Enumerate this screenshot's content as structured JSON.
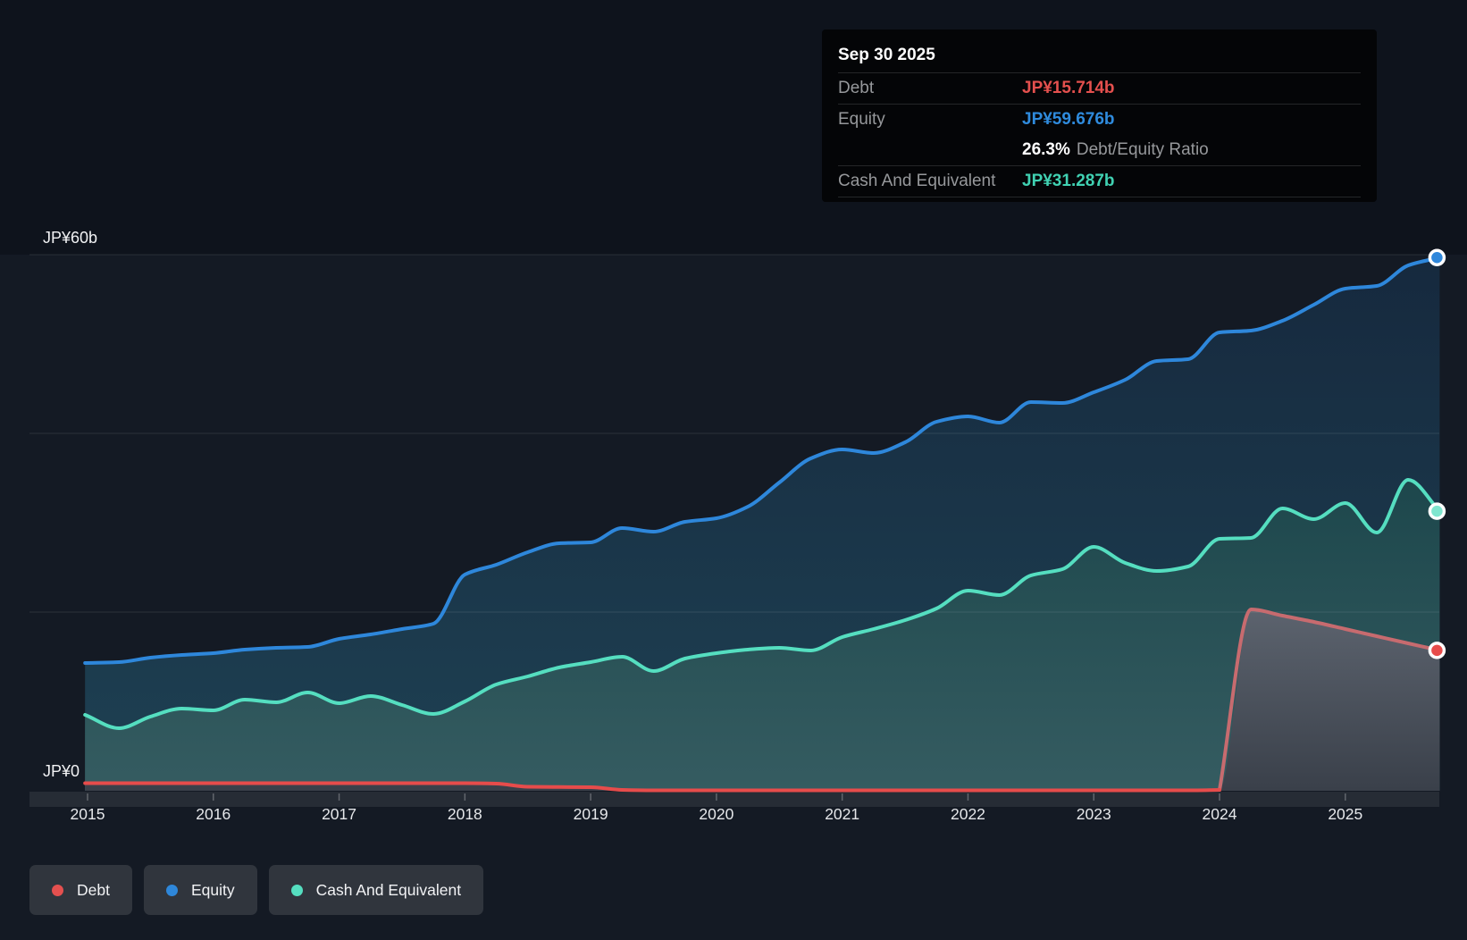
{
  "tooltip": {
    "date": "Sep 30 2025",
    "debt_label": "Debt",
    "debt_value": "JP¥15.714b",
    "equity_label": "Equity",
    "equity_value": "JP¥59.676b",
    "ratio_value": "26.3%",
    "ratio_label": "Debt/Equity Ratio",
    "cash_label": "Cash And Equivalent",
    "cash_value": "JP¥31.287b"
  },
  "y_axis": {
    "top_label": "JP¥60b",
    "zero_label": "JP¥0"
  },
  "legend": [
    {
      "label": "Debt",
      "color": "#e4504f"
    },
    {
      "label": "Equity",
      "color": "#2e87da"
    },
    {
      "label": "Cash And Equivalent",
      "color": "#55dec0"
    }
  ],
  "colors": {
    "page_bg": "#141a24",
    "top_zone_bg": "#0e131c",
    "gridline": "rgba(255,255,255,0.10)",
    "axis_strip": "#262c35",
    "tick": "rgba(255,255,255,0.28)",
    "year_text": "#e5e7ea",
    "y_label_text": "#f1f2f4"
  },
  "chart_data": {
    "type": "area",
    "title": "Debt to Equity history",
    "units": "JP¥ billions",
    "x_years": [
      "2015",
      "2016",
      "2017",
      "2018",
      "2019",
      "2020",
      "2021",
      "2022",
      "2023",
      "2024",
      "2025"
    ],
    "ylim": [
      0,
      60
    ],
    "y_gridline_values": [
      60,
      40,
      20
    ],
    "last_point_date": "Sep 30 2025",
    "series": [
      {
        "name": "Equity",
        "color": "#2e87db",
        "fill_top": "#16293e",
        "fill_bottom": "#1e4153",
        "points": [
          [
            2014.98,
            14.3
          ],
          [
            2015.25,
            14.4
          ],
          [
            2015.5,
            14.9
          ],
          [
            2015.75,
            15.2
          ],
          [
            2016,
            15.4
          ],
          [
            2016.25,
            15.8
          ],
          [
            2016.5,
            16.0
          ],
          [
            2016.75,
            16.1
          ],
          [
            2017,
            17.0
          ],
          [
            2017.25,
            17.5
          ],
          [
            2017.5,
            18.1
          ],
          [
            2017.75,
            18.7
          ],
          [
            2018,
            24.2
          ],
          [
            2018.25,
            25.3
          ],
          [
            2018.5,
            26.7
          ],
          [
            2018.75,
            27.7
          ],
          [
            2019,
            27.8
          ],
          [
            2019.25,
            29.4
          ],
          [
            2019.5,
            29.0
          ],
          [
            2019.75,
            30.1
          ],
          [
            2020,
            30.5
          ],
          [
            2020.25,
            31.8
          ],
          [
            2020.5,
            34.5
          ],
          [
            2020.75,
            37.2
          ],
          [
            2021,
            38.2
          ],
          [
            2021.25,
            37.8
          ],
          [
            2021.5,
            39.0
          ],
          [
            2021.75,
            41.3
          ],
          [
            2022,
            41.9
          ],
          [
            2022.25,
            41.2
          ],
          [
            2022.5,
            43.5
          ],
          [
            2022.75,
            43.4
          ],
          [
            2023,
            44.6
          ],
          [
            2023.25,
            46.0
          ],
          [
            2023.5,
            48.1
          ],
          [
            2023.75,
            48.3
          ],
          [
            2024,
            51.3
          ],
          [
            2024.25,
            51.5
          ],
          [
            2024.5,
            52.6
          ],
          [
            2024.75,
            54.4
          ],
          [
            2025,
            56.2
          ],
          [
            2025.25,
            56.5
          ],
          [
            2025.5,
            58.8
          ],
          [
            2025.75,
            59.676
          ]
        ]
      },
      {
        "name": "Cash And Equivalent",
        "color": "#55dec0",
        "fill_top": "#1d474c",
        "fill_bottom": "#355c61",
        "points": [
          [
            2014.98,
            8.5
          ],
          [
            2015.25,
            7.0
          ],
          [
            2015.5,
            8.3
          ],
          [
            2015.75,
            9.2
          ],
          [
            2016,
            9.0
          ],
          [
            2016.25,
            10.2
          ],
          [
            2016.5,
            9.9
          ],
          [
            2016.75,
            11.0
          ],
          [
            2017,
            9.8
          ],
          [
            2017.25,
            10.6
          ],
          [
            2017.5,
            9.6
          ],
          [
            2017.75,
            8.6
          ],
          [
            2018,
            10.0
          ],
          [
            2018.25,
            11.9
          ],
          [
            2018.5,
            12.8
          ],
          [
            2018.75,
            13.8
          ],
          [
            2019,
            14.4
          ],
          [
            2019.25,
            15.0
          ],
          [
            2019.5,
            13.4
          ],
          [
            2019.75,
            14.8
          ],
          [
            2020,
            15.4
          ],
          [
            2020.25,
            15.8
          ],
          [
            2020.5,
            16.0
          ],
          [
            2020.75,
            15.7
          ],
          [
            2021,
            17.2
          ],
          [
            2021.25,
            18.1
          ],
          [
            2021.5,
            19.1
          ],
          [
            2021.75,
            20.4
          ],
          [
            2022,
            22.4
          ],
          [
            2022.25,
            21.9
          ],
          [
            2022.5,
            24.1
          ],
          [
            2022.75,
            24.8
          ],
          [
            2023,
            27.3
          ],
          [
            2023.25,
            25.5
          ],
          [
            2023.5,
            24.6
          ],
          [
            2023.75,
            25.1
          ],
          [
            2024,
            28.2
          ],
          [
            2024.25,
            28.3
          ],
          [
            2024.5,
            31.6
          ],
          [
            2024.75,
            30.4
          ],
          [
            2025,
            32.2
          ],
          [
            2025.25,
            28.9
          ],
          [
            2025.5,
            34.8
          ],
          [
            2025.75,
            31.287
          ]
        ]
      },
      {
        "name": "Debt",
        "color": "#e74c4b",
        "color_recent": "#c76b6f",
        "fill_top": "#5c636e",
        "fill_bottom": "#3a404a",
        "split_t": 2024,
        "points": [
          [
            2014.98,
            0.85
          ],
          [
            2015.25,
            0.85
          ],
          [
            2015.5,
            0.85
          ],
          [
            2015.75,
            0.85
          ],
          [
            2016,
            0.85
          ],
          [
            2016.25,
            0.85
          ],
          [
            2016.5,
            0.85
          ],
          [
            2016.75,
            0.85
          ],
          [
            2017,
            0.85
          ],
          [
            2017.25,
            0.85
          ],
          [
            2017.5,
            0.85
          ],
          [
            2017.75,
            0.85
          ],
          [
            2018,
            0.85
          ],
          [
            2018.25,
            0.8
          ],
          [
            2018.5,
            0.45
          ],
          [
            2018.75,
            0.42
          ],
          [
            2019,
            0.4
          ],
          [
            2019.25,
            0.1
          ],
          [
            2019.5,
            0.05
          ],
          [
            2019.75,
            0.05
          ],
          [
            2020,
            0.05
          ],
          [
            2020.25,
            0.05
          ],
          [
            2020.5,
            0.05
          ],
          [
            2020.75,
            0.05
          ],
          [
            2021,
            0.05
          ],
          [
            2021.25,
            0.05
          ],
          [
            2021.5,
            0.05
          ],
          [
            2021.75,
            0.05
          ],
          [
            2022,
            0.05
          ],
          [
            2022.25,
            0.05
          ],
          [
            2022.5,
            0.05
          ],
          [
            2022.75,
            0.05
          ],
          [
            2023,
            0.05
          ],
          [
            2023.25,
            0.05
          ],
          [
            2023.5,
            0.05
          ],
          [
            2023.75,
            0.05
          ],
          [
            2024,
            0.1
          ],
          [
            2024.25,
            20.3
          ],
          [
            2024.5,
            19.6
          ],
          [
            2024.75,
            18.9
          ],
          [
            2025,
            18.1
          ],
          [
            2025.25,
            17.3
          ],
          [
            2025.5,
            16.5
          ],
          [
            2025.75,
            15.714
          ]
        ]
      }
    ]
  }
}
